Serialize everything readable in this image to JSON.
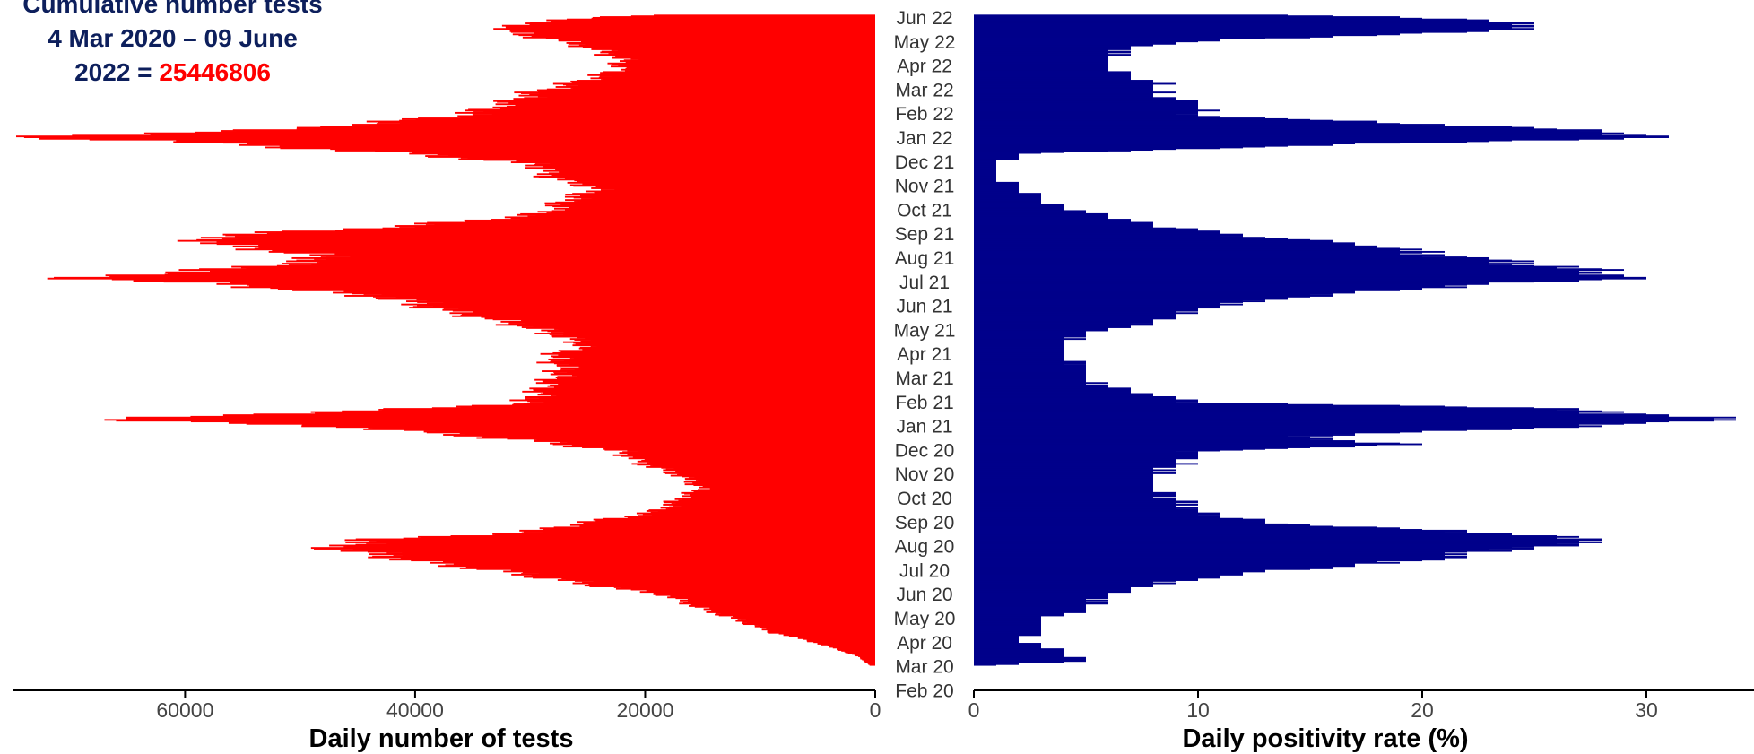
{
  "title": {
    "line1": "Cumulative number tests",
    "line2": "4 Mar 2020 – 09 June",
    "line3_prefix": "2022 = ",
    "total": "25446806"
  },
  "colors": {
    "tests": "#ff0000",
    "positivity": "#00008b",
    "axis": "#000000"
  },
  "chart_data": [
    {
      "type": "bar",
      "orientation": "horizontal",
      "direction": "leftward",
      "xlabel": "Daily number of tests",
      "xlim": [
        0,
        75000
      ],
      "xticks": [
        "60000",
        "40000",
        "20000",
        "0"
      ],
      "xtick_values": [
        60000,
        40000,
        20000,
        0
      ],
      "y_dates": [
        "2020-03-04",
        "2020-03-15",
        "2020-03-25",
        "2020-04-05",
        "2020-04-15",
        "2020-05-01",
        "2020-05-15",
        "2020-06-01",
        "2020-06-15",
        "2020-07-01",
        "2020-07-15",
        "2020-08-01",
        "2020-08-10",
        "2020-08-20",
        "2020-09-01",
        "2020-09-15",
        "2020-10-01",
        "2020-10-15",
        "2020-11-01",
        "2020-11-15",
        "2020-12-01",
        "2020-12-15",
        "2021-01-01",
        "2021-01-10",
        "2021-01-15",
        "2021-01-25",
        "2021-02-01",
        "2021-02-15",
        "2021-03-01",
        "2021-03-15",
        "2021-04-01",
        "2021-04-15",
        "2021-05-01",
        "2021-05-15",
        "2021-06-01",
        "2021-06-15",
        "2021-07-01",
        "2021-07-10",
        "2021-07-20",
        "2021-08-01",
        "2021-08-10",
        "2021-08-20",
        "2021-09-01",
        "2021-09-10",
        "2021-09-20",
        "2021-10-01",
        "2021-10-15",
        "2021-11-01",
        "2021-11-15",
        "2021-12-01",
        "2021-12-15",
        "2022-01-01",
        "2022-01-05",
        "2022-01-15",
        "2022-02-01",
        "2022-02-15",
        "2022-03-01",
        "2022-03-15",
        "2022-04-01",
        "2022-04-15",
        "2022-05-01",
        "2022-05-10",
        "2022-05-20",
        "2022-06-01",
        "2022-06-09"
      ],
      "values": [
        500,
        1500,
        3500,
        6000,
        9000,
        12000,
        15000,
        18000,
        25000,
        32000,
        40000,
        47000,
        44000,
        30000,
        25000,
        19000,
        17000,
        15000,
        17000,
        20000,
        22000,
        30000,
        45000,
        66000,
        58000,
        38000,
        30000,
        29000,
        28000,
        27000,
        28000,
        25000,
        28000,
        32000,
        38000,
        42000,
        55000,
        69000,
        57000,
        48000,
        49000,
        56000,
        58000,
        45000,
        35000,
        28000,
        27000,
        24000,
        28000,
        29000,
        40000,
        62000,
        75000,
        50000,
        36000,
        32000,
        30000,
        26000,
        22000,
        22000,
        25000,
        28000,
        32000,
        30000,
        20000
      ]
    },
    {
      "type": "bar",
      "orientation": "horizontal",
      "direction": "rightward",
      "xlabel": "Daily positivity rate (%)",
      "xlim": [
        0,
        35
      ],
      "xticks": [
        "0",
        "10",
        "20",
        "30"
      ],
      "xtick_values": [
        0,
        10,
        20,
        30
      ],
      "y_dates": [
        "2020-03-04",
        "2020-03-10",
        "2020-03-20",
        "2020-03-28",
        "2020-04-05",
        "2020-04-15",
        "2020-05-01",
        "2020-05-15",
        "2020-06-01",
        "2020-06-15",
        "2020-07-01",
        "2020-07-15",
        "2020-08-01",
        "2020-08-05",
        "2020-08-15",
        "2020-09-01",
        "2020-09-15",
        "2020-10-01",
        "2020-10-15",
        "2020-11-01",
        "2020-11-15",
        "2020-12-01",
        "2020-12-10",
        "2020-12-20",
        "2021-01-01",
        "2021-01-10",
        "2021-01-15",
        "2021-01-25",
        "2021-02-01",
        "2021-02-15",
        "2021-03-01",
        "2021-03-15",
        "2021-04-01",
        "2021-04-15",
        "2021-05-01",
        "2021-05-15",
        "2021-06-01",
        "2021-06-15",
        "2021-07-01",
        "2021-07-10",
        "2021-07-20",
        "2021-08-01",
        "2021-08-10",
        "2021-08-20",
        "2021-09-01",
        "2021-09-15",
        "2021-10-01",
        "2021-10-15",
        "2021-11-01",
        "2021-11-15",
        "2021-12-01",
        "2021-12-15",
        "2021-12-28",
        "2022-01-05",
        "2022-01-15",
        "2022-02-01",
        "2022-02-15",
        "2022-03-01",
        "2022-03-15",
        "2022-04-01",
        "2022-04-15",
        "2022-05-01",
        "2022-05-10",
        "2022-05-20",
        "2022-06-01",
        "2022-06-09"
      ],
      "values": [
        1,
        5,
        4,
        3,
        2,
        3,
        3,
        5,
        6,
        8,
        13,
        20,
        24,
        28,
        26,
        13,
        10,
        9,
        8,
        8,
        9,
        10,
        19,
        14,
        26,
        33,
        31,
        25,
        10,
        7,
        5,
        5,
        4,
        4,
        5,
        8,
        10,
        14,
        22,
        29,
        27,
        23,
        20,
        18,
        12,
        8,
        5,
        3,
        2,
        1,
        1,
        2,
        18,
        31,
        26,
        10,
        10,
        8,
        8,
        6,
        6,
        7,
        12,
        23,
        25,
        15
      ]
    }
  ],
  "months": [
    "Jun 22",
    "May 22",
    "Apr 22",
    "Mar 22",
    "Feb 22",
    "Jan 22",
    "Dec 21",
    "Nov 21",
    "Oct 21",
    "Sep 21",
    "Aug 21",
    "Jul 21",
    "Jun 21",
    "May 21",
    "Apr 21",
    "Mar 21",
    "Feb 21",
    "Jan 21",
    "Dec 20",
    "Nov 20",
    "Oct 20",
    "Sep 20",
    "Aug 20",
    "Jul 20",
    "Jun 20",
    "May 20",
    "Apr 20",
    "Mar 20",
    "Feb 20"
  ]
}
